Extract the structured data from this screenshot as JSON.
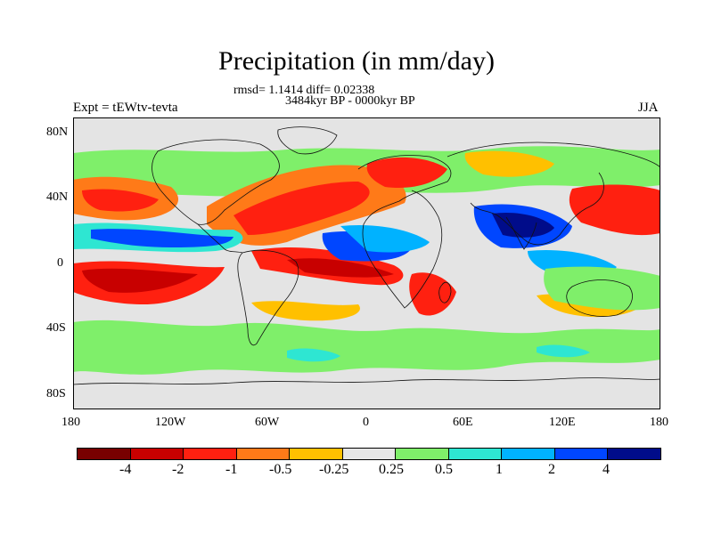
{
  "header": {
    "title": "Precipitation (in mm/day)",
    "stats": "rmsd= 1.1414 diff= 0.02338",
    "period": "3484kyr BP - 0000kyr BP",
    "experiment": "Expt = tEWtv-tevta",
    "season": "JJA"
  },
  "map": {
    "y_ticks": [
      "80N",
      "40N",
      "0",
      "40S",
      "80S"
    ],
    "x_ticks": [
      "180",
      "120W",
      "60W",
      "0",
      "60E",
      "120E",
      "180"
    ],
    "colors": {
      "land_bg": "#e4e4e4",
      "coast": "#111111"
    }
  },
  "colorbar": {
    "colors": [
      "#780000",
      "#c80000",
      "#ff2010",
      "#ff7a18",
      "#ffc000",
      "#e6e6e6",
      "#7fef6a",
      "#2ee6d2",
      "#00b2ff",
      "#0046ff",
      "#000c8a"
    ],
    "labels": [
      "-4",
      "-2",
      "-1",
      "-0.5",
      "-0.25",
      "0.25",
      "0.5",
      "1",
      "2",
      "4"
    ]
  }
}
